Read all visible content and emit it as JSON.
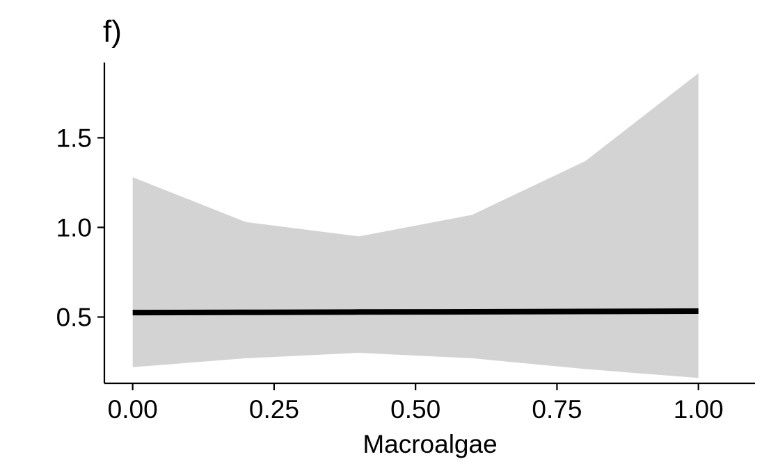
{
  "chart_data": {
    "type": "line",
    "title": "f)",
    "xlabel": "Macroalgae",
    "ylabel": "",
    "xlim": [
      -0.05,
      1.1
    ],
    "ylim": [
      0.13,
      1.92
    ],
    "xticks": [
      0.0,
      0.25,
      0.5,
      0.75,
      1.0
    ],
    "xtick_labels": [
      "0.00",
      "0.25",
      "0.50",
      "0.75",
      "1.00"
    ],
    "yticks": [
      0.5,
      1.0,
      1.5
    ],
    "ytick_labels": [
      "0.5",
      "1.0",
      "1.5"
    ],
    "grid": false,
    "legend": "none",
    "series": [
      {
        "kind": "line",
        "color": "#000000",
        "x": [
          0.0,
          0.2,
          0.4,
          0.6,
          0.8,
          1.0
        ],
        "y": [
          0.525,
          0.526,
          0.528,
          0.529,
          0.531,
          0.533
        ]
      },
      {
        "kind": "ribbon",
        "color": "#d3d3d3",
        "x": [
          0.0,
          0.2,
          0.4,
          0.6,
          0.8,
          1.0
        ],
        "lower": [
          0.22,
          0.27,
          0.3,
          0.27,
          0.21,
          0.16
        ],
        "upper": [
          1.28,
          1.03,
          0.95,
          1.07,
          1.37,
          1.86
        ]
      }
    ]
  }
}
